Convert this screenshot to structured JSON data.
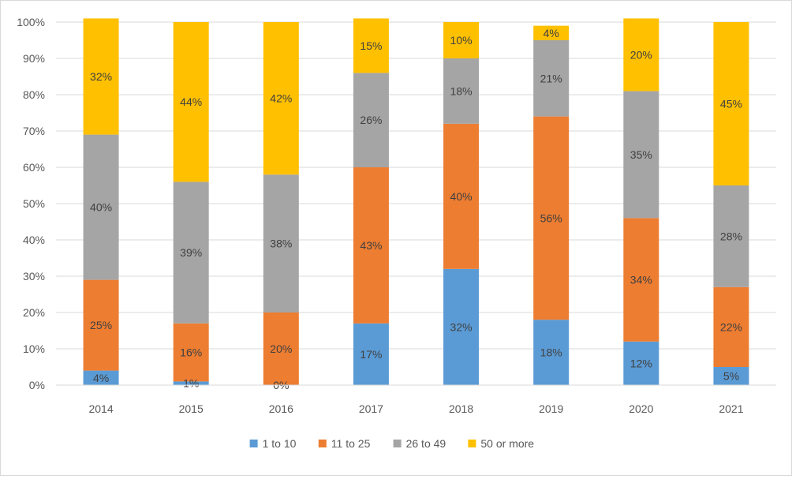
{
  "chart_data": {
    "type": "bar",
    "stacked": true,
    "categories": [
      "2014",
      "2015",
      "2016",
      "2017",
      "2018",
      "2019",
      "2020",
      "2021"
    ],
    "series": [
      {
        "name": "1 to 10",
        "color": "#5b9bd5",
        "values": [
          4,
          1,
          0,
          17,
          32,
          18,
          12,
          5
        ],
        "labels": [
          "4%",
          "1%",
          "0%",
          "17%",
          "32%",
          "18%",
          "12%",
          "5%"
        ]
      },
      {
        "name": "11 to 25",
        "color": "#ed7d31",
        "values": [
          25,
          16,
          20,
          43,
          40,
          56,
          34,
          22
        ],
        "labels": [
          "25%",
          "16%",
          "20%",
          "43%",
          "40%",
          "56%",
          "34%",
          "22%"
        ]
      },
      {
        "name": "26 to 49",
        "color": "#a5a5a5",
        "values": [
          40,
          39,
          38,
          26,
          18,
          21,
          35,
          28
        ],
        "labels": [
          "40%",
          "39%",
          "38%",
          "26%",
          "18%",
          "21%",
          "35%",
          "28%"
        ]
      },
      {
        "name": "50 or more",
        "color": "#ffc000",
        "values": [
          32,
          44,
          42,
          15,
          10,
          4,
          20,
          45
        ],
        "labels": [
          "32%",
          "44%",
          "42%",
          "15%",
          "10%",
          "4%",
          "20%",
          "45%"
        ]
      }
    ],
    "y_ticks": [
      "0%",
      "10%",
      "20%",
      "30%",
      "40%",
      "50%",
      "60%",
      "70%",
      "80%",
      "90%",
      "100%"
    ],
    "ylim": [
      0,
      100
    ],
    "grid": true,
    "legend_position": "bottom",
    "title": "",
    "xlabel": "",
    "ylabel": ""
  }
}
